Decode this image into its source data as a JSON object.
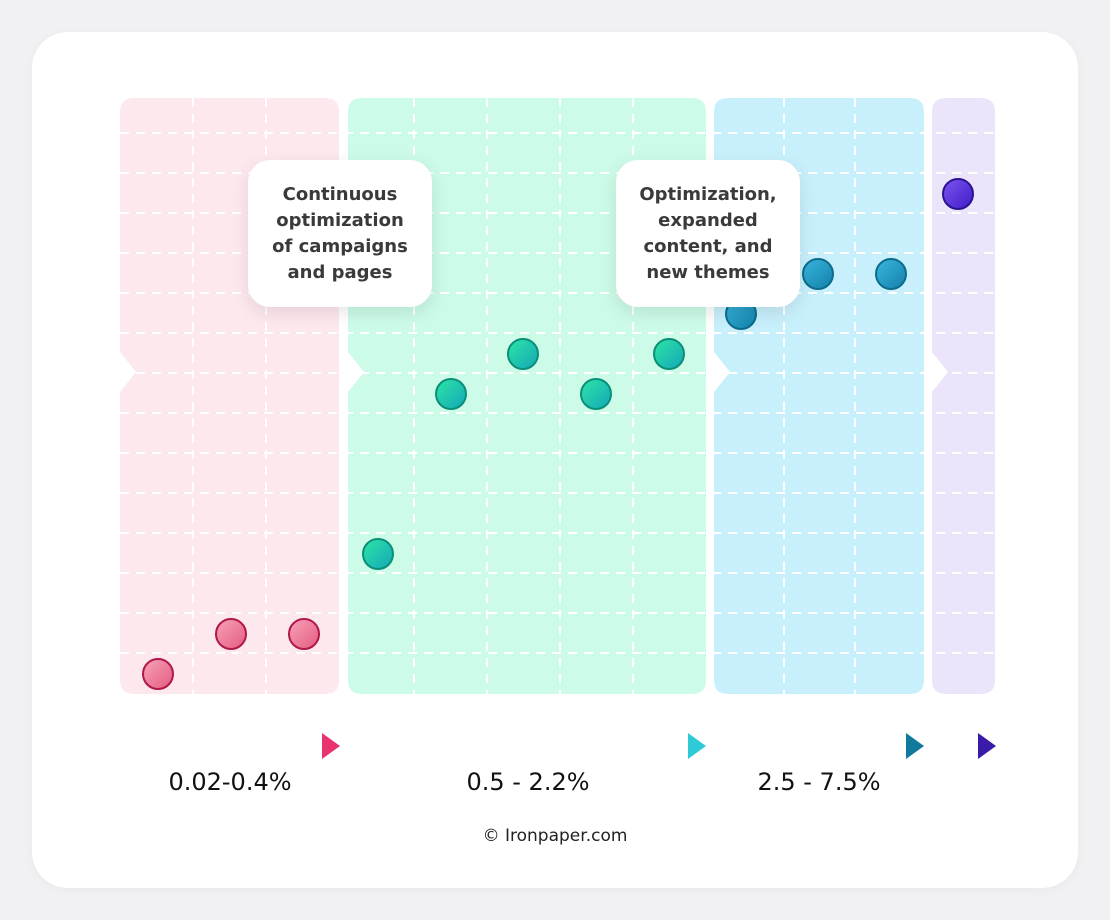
{
  "chart_data": {
    "type": "scatter",
    "title": "",
    "xlabel": "",
    "ylabel": "",
    "grid": true,
    "ylim": [
      0,
      15
    ],
    "stages": [
      {
        "range_label": "0.02-0.4%",
        "color": "#fde8ee",
        "marker_color": "#f06a8e",
        "arrow_color": "#e8336f",
        "points": [
          1,
          2,
          2
        ]
      },
      {
        "range_label": "0.5 - 2.2%",
        "color": "#ccfbe8",
        "marker_color": "#14c99a",
        "arrow_color": "#2ecbd6",
        "points": [
          4,
          8,
          9,
          8,
          9
        ]
      },
      {
        "range_label": "2.5 - 7.5%",
        "color": "#c8f0fc",
        "marker_color": "#1a9fc9",
        "arrow_color": "#117a9c",
        "points": [
          10,
          11,
          11
        ]
      },
      {
        "range_label": "",
        "color": "#ebe4fb",
        "marker_color": "#5a2ee0",
        "arrow_color": "#3a1aa8",
        "points": [
          13
        ]
      }
    ]
  },
  "callouts": [
    "Continuous\noptimization\nof campaigns\nand pages",
    "Optimization,\nexpanded\ncontent, and\nnew themes"
  ],
  "footer": {
    "copyright": "© Ironpaper.com"
  }
}
